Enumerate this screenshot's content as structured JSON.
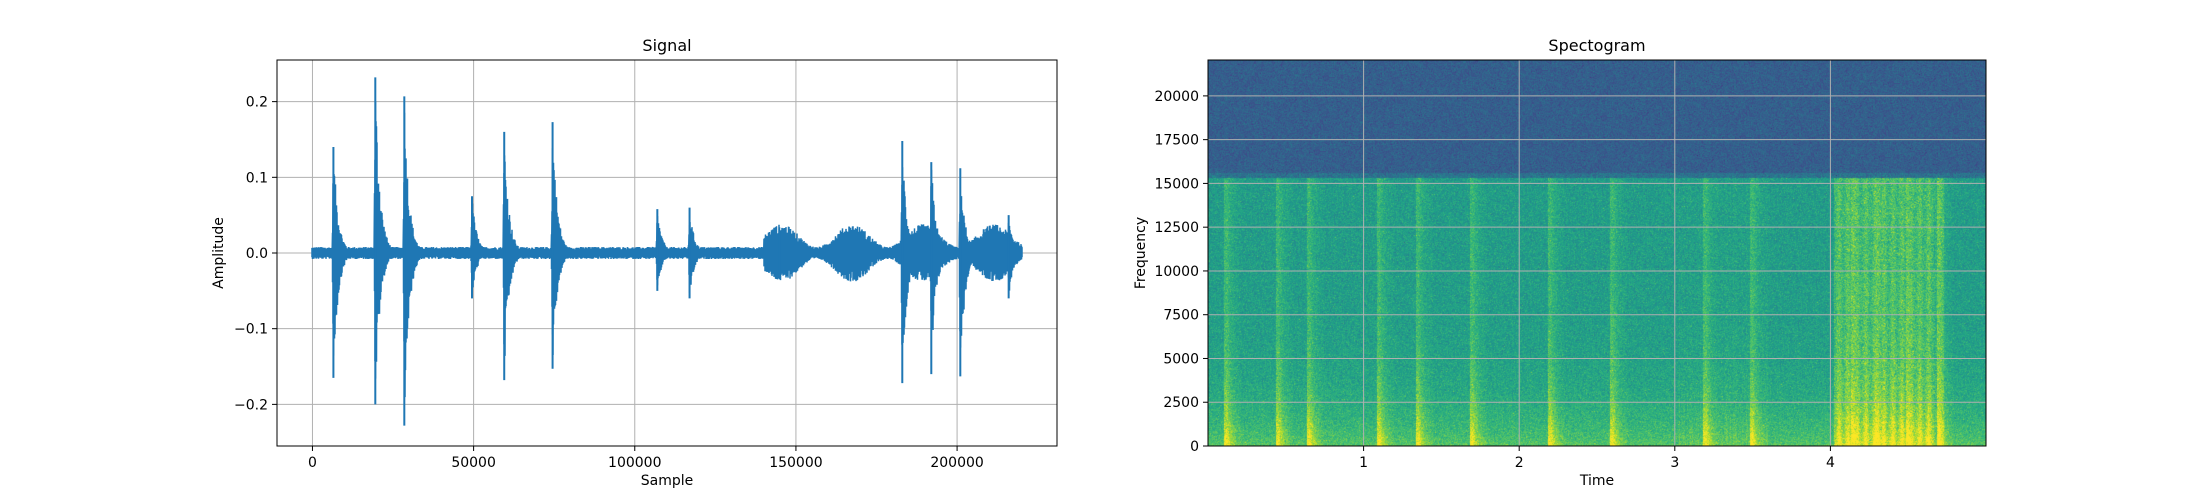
{
  "chart_data": [
    {
      "type": "line",
      "title": "Signal",
      "xlabel": "Sample",
      "ylabel": "Amplitude",
      "xlim": [
        -11000,
        231000
      ],
      "ylim": [
        -0.255,
        0.255
      ],
      "grid": true,
      "color": "#1f77b4",
      "x_ticks": [
        0,
        50000,
        100000,
        150000,
        200000
      ],
      "x_tick_labels": [
        "0",
        "50000",
        "100000",
        "150000",
        "200000"
      ],
      "y_ticks": [
        -0.2,
        -0.1,
        0.0,
        0.1,
        0.2
      ],
      "y_tick_labels": [
        "−0.2",
        "−0.1",
        "0.0",
        "0.1",
        "0.2"
      ],
      "baseline_noise": 0.008,
      "n_samples": 220000,
      "bursts": [
        {
          "x": 6500,
          "max": 0.14,
          "min": -0.165
        },
        {
          "x": 19500,
          "max": 0.232,
          "min": -0.2
        },
        {
          "x": 28500,
          "max": 0.207,
          "min": -0.228
        },
        {
          "x": 49500,
          "max": 0.075,
          "min": -0.06
        },
        {
          "x": 59500,
          "max": 0.16,
          "min": -0.168
        },
        {
          "x": 74500,
          "max": 0.173,
          "min": -0.153
        },
        {
          "x": 107000,
          "max": 0.058,
          "min": -0.05
        },
        {
          "x": 117000,
          "max": 0.06,
          "min": -0.06
        },
        {
          "x": 145000,
          "max": 0.03,
          "min": -0.028
        },
        {
          "x": 183000,
          "max": 0.148,
          "min": -0.172
        },
        {
          "x": 192000,
          "max": 0.12,
          "min": -0.16
        },
        {
          "x": 201000,
          "max": 0.112,
          "min": -0.163
        },
        {
          "x": 216000,
          "max": 0.05,
          "min": -0.06
        }
      ],
      "active_region": {
        "from": 140000,
        "to": 220000,
        "level": 0.03
      }
    },
    {
      "type": "heatmap",
      "title": "Spectogram",
      "xlabel": "Time",
      "ylabel": "Frequency",
      "xlim": [
        0,
        5.0
      ],
      "ylim": [
        0,
        22050
      ],
      "grid": true,
      "colormap": "viridis",
      "x_ticks": [
        1,
        2,
        3,
        4
      ],
      "x_tick_labels": [
        "1",
        "2",
        "3",
        "4"
      ],
      "y_ticks": [
        0,
        2500,
        5000,
        7500,
        10000,
        12500,
        15000,
        17500,
        20000
      ],
      "y_tick_labels": [
        "0",
        "2500",
        "5000",
        "7500",
        "10000",
        "12500",
        "15000",
        "17500",
        "20000"
      ],
      "cutoff_frequency": 15500,
      "events_time": [
        0.12,
        0.45,
        0.65,
        1.1,
        1.35,
        1.7,
        2.2,
        2.6,
        3.2,
        3.5,
        4.15,
        4.3,
        4.5,
        4.7
      ]
    }
  ]
}
